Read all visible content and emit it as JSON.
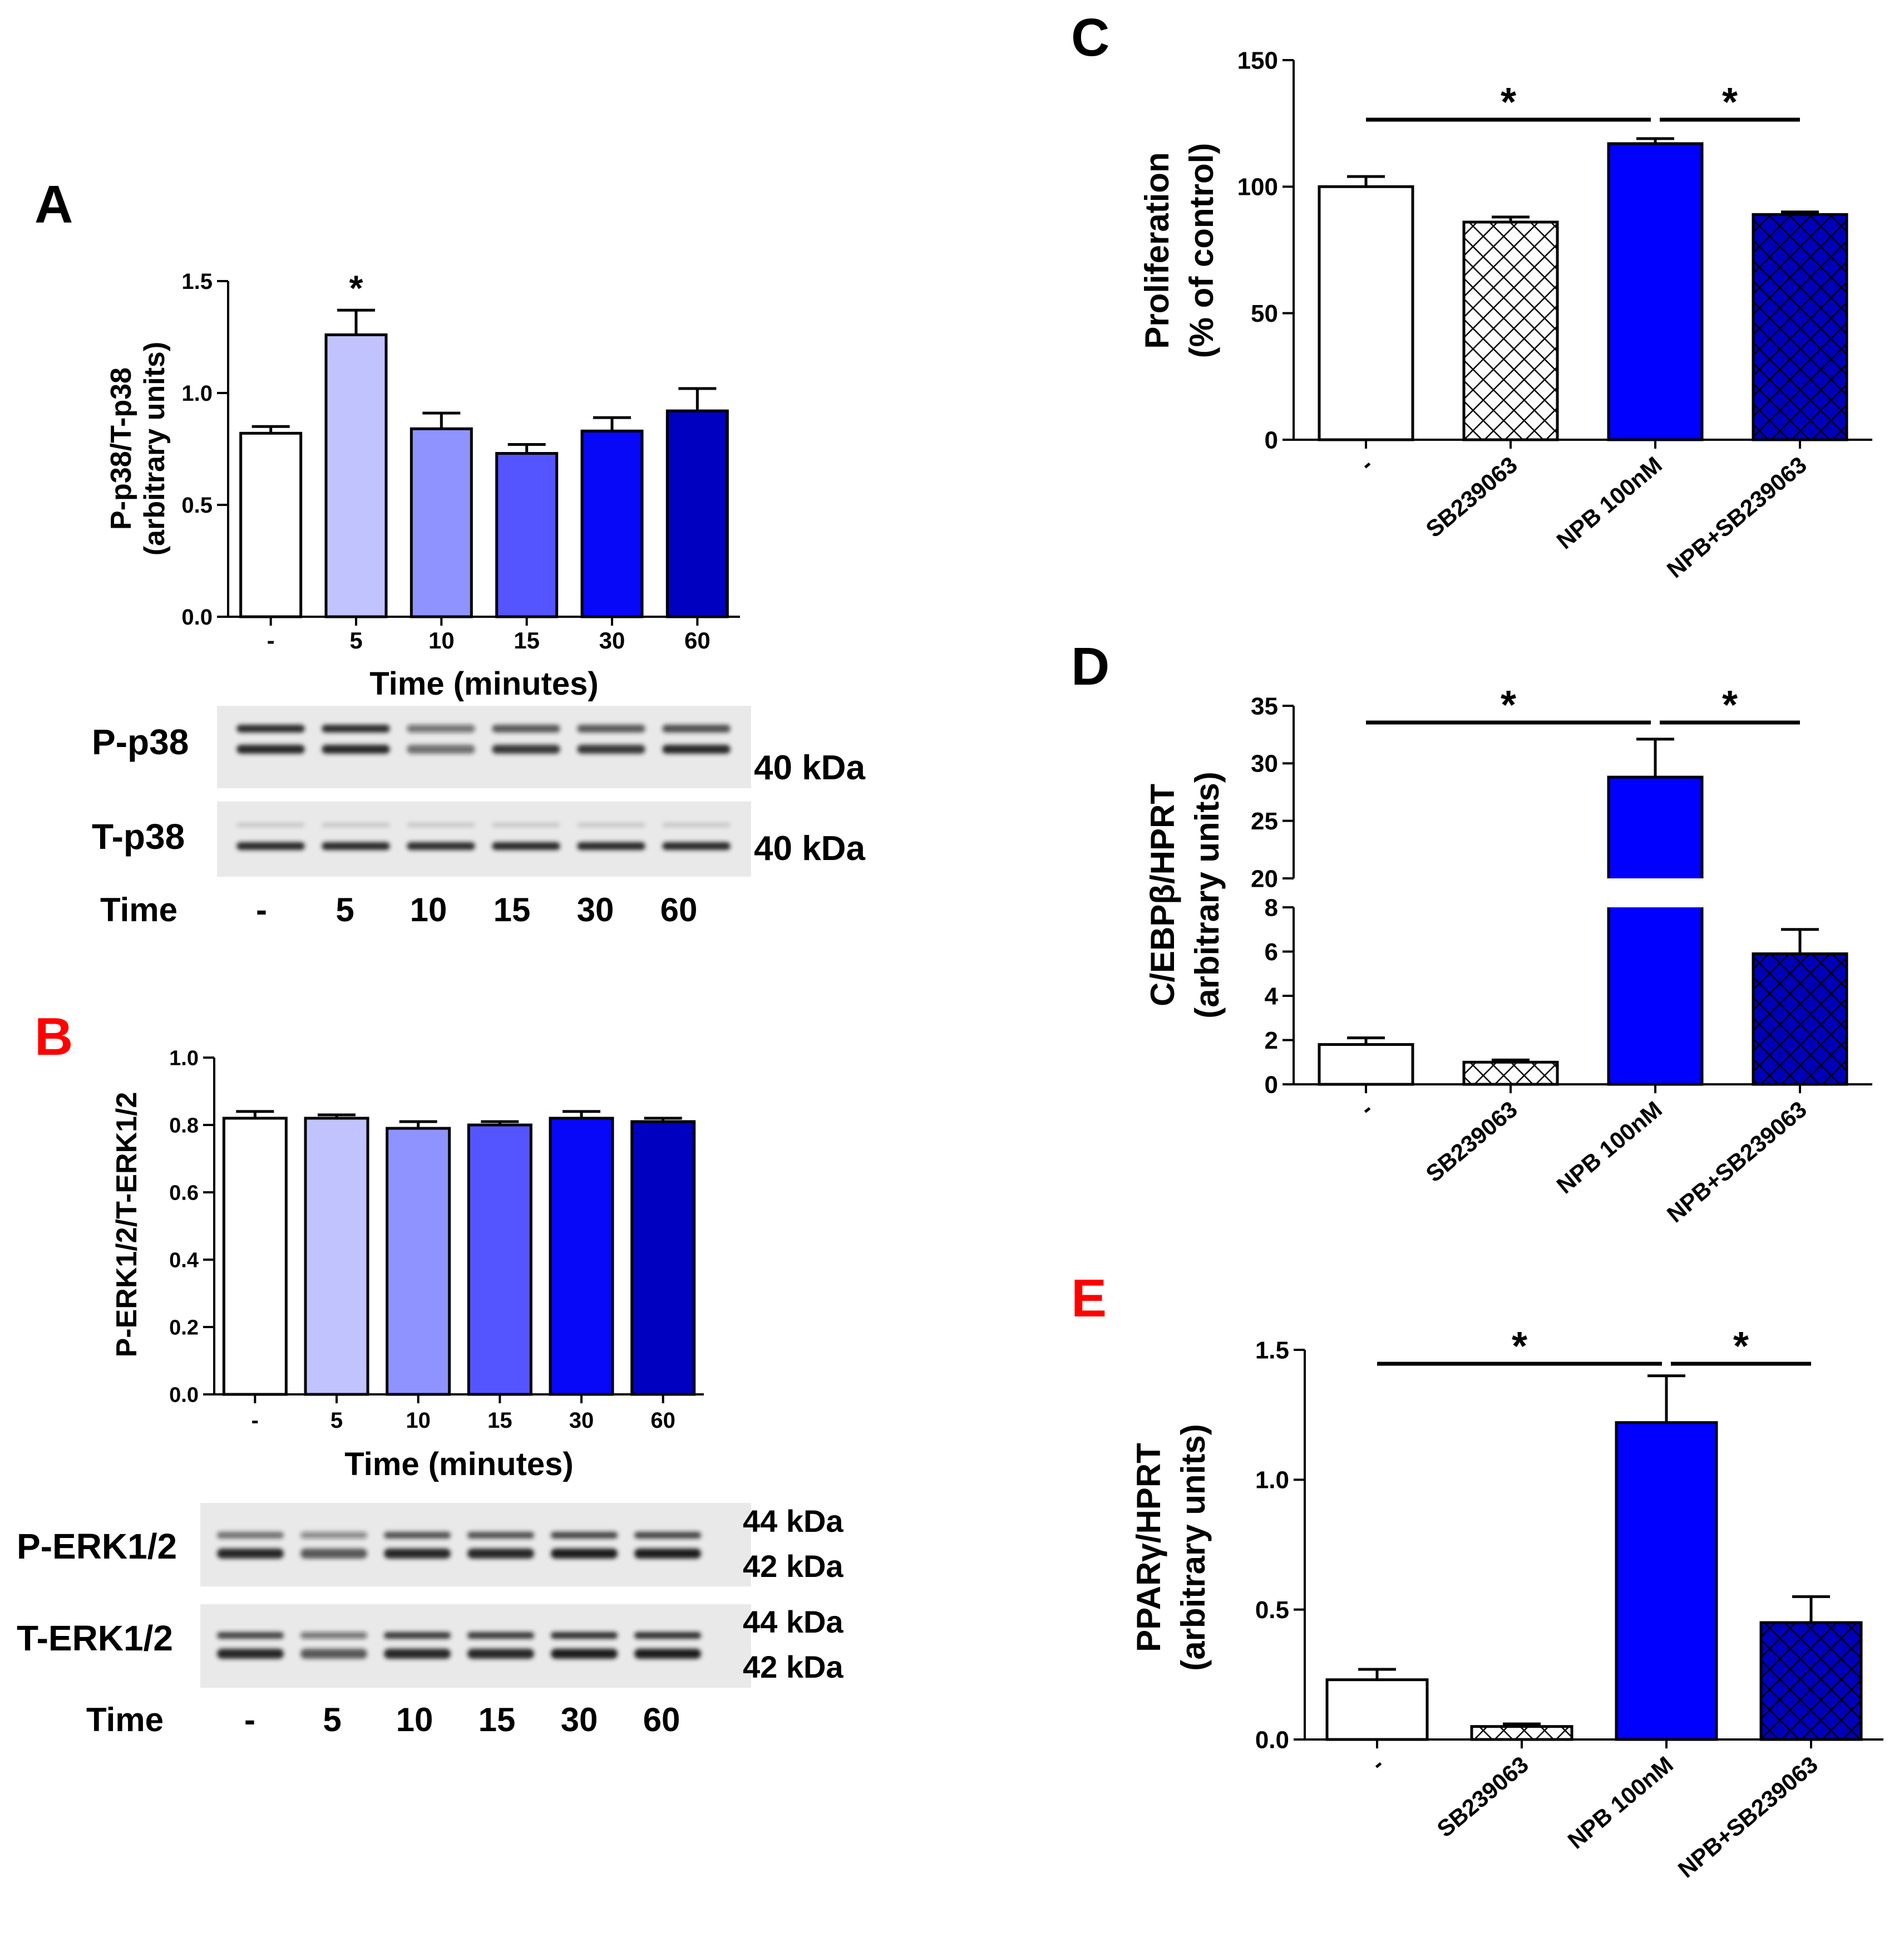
{
  "panel_letters": {
    "A": "A",
    "B": "B",
    "C": "C",
    "D": "D",
    "E": "E"
  },
  "colors": {
    "letter_black": "#000000",
    "letter_red": "#ff0000",
    "time_ramp": [
      "#ffffff",
      "#c0c3ff",
      "#8f93ff",
      "#5555ff",
      "#0808f8",
      "#0000c0"
    ],
    "treat": [
      "#ffffff",
      "#ffffff",
      "#0000ff",
      "#0000b8"
    ],
    "blot_bg": "#e9e9e9",
    "band": "#1a1a1a"
  },
  "blots": {
    "a": {
      "rows": [
        {
          "label": "P-p38",
          "sizes": [
            "40 kDa"
          ]
        },
        {
          "label": "T-p38",
          "sizes": [
            "40 kDa"
          ]
        }
      ],
      "time_label": "Time",
      "times": [
        "-",
        "5",
        "10",
        "15",
        "30",
        "60"
      ]
    },
    "b": {
      "rows": [
        {
          "label": "P-ERK1/2",
          "sizes": [
            "44 kDa",
            "42 kDa"
          ]
        },
        {
          "label": "T-ERK1/2",
          "sizes": [
            "44 kDa",
            "42 kDa"
          ]
        }
      ],
      "time_label": "Time",
      "times": [
        "-",
        "5",
        "10",
        "15",
        "30",
        "60"
      ]
    }
  },
  "chart_data": [
    {
      "panel": "A",
      "type": "bar",
      "categories": [
        "-",
        "5",
        "10",
        "15",
        "30",
        "60"
      ],
      "values": [
        0.82,
        1.26,
        0.84,
        0.73,
        0.83,
        0.92
      ],
      "errors": [
        0.03,
        0.11,
        0.07,
        0.04,
        0.06,
        0.1
      ],
      "significance": [
        "",
        "*",
        "",
        "",
        "",
        ""
      ],
      "xlabel": "Time (minutes)",
      "ylabel": [
        "P-p38/T-p38",
        "(arbitrary units)"
      ],
      "ylim": [
        0,
        1.5
      ],
      "yticks": [
        "0.0",
        "0.5",
        "1.0",
        "1.5"
      ],
      "pattern": "solid",
      "grid": false
    },
    {
      "panel": "B",
      "type": "bar",
      "categories": [
        "-",
        "5",
        "10",
        "15",
        "30",
        "60"
      ],
      "values": [
        0.82,
        0.82,
        0.79,
        0.8,
        0.82,
        0.81
      ],
      "errors": [
        0.02,
        0.01,
        0.02,
        0.01,
        0.02,
        0.01
      ],
      "xlabel": "Time (minutes)",
      "ylabel": [
        "P-ERK1/2/T-ERK1/2"
      ],
      "ylim": [
        0,
        1.0
      ],
      "yticks": [
        "0.0",
        "0.2",
        "0.4",
        "0.6",
        "0.8",
        "1.0"
      ],
      "pattern": "solid",
      "grid": false
    },
    {
      "panel": "C",
      "type": "bar",
      "categories": [
        "-",
        "SB239063",
        "NPB 100nM",
        "NPB+SB239063"
      ],
      "values": [
        100,
        86,
        117,
        89
      ],
      "errors": [
        4,
        2,
        2,
        1
      ],
      "ylabel": [
        "Proliferation",
        "(% of control)"
      ],
      "ylim": [
        0,
        150
      ],
      "yticks": [
        "0",
        "50",
        "100",
        "150"
      ],
      "patterns": [
        "none",
        "cross",
        "none",
        "cross"
      ],
      "significance": [
        {
          "from": 0,
          "to": 2,
          "label": "*"
        },
        {
          "from": 2,
          "to": 3,
          "label": "*"
        }
      ],
      "grid": false
    },
    {
      "panel": "D",
      "type": "bar",
      "categories": [
        "-",
        "SB239063",
        "NPB 100nM",
        "NPB+SB239063"
      ],
      "values": [
        1.8,
        1.0,
        28.8,
        5.9
      ],
      "errors": [
        0.3,
        0.1,
        3.3,
        1.1
      ],
      "ylabel": [
        "C/EBPβ/HPRT",
        "(arbitrary units)"
      ],
      "broken_axis": {
        "lower": [
          0,
          8
        ],
        "upper": [
          20,
          35
        ]
      },
      "yticks_lower": [
        "0",
        "2",
        "4",
        "6",
        "8"
      ],
      "yticks_upper": [
        "20",
        "25",
        "30",
        "35"
      ],
      "patterns": [
        "none",
        "cross",
        "none",
        "cross"
      ],
      "significance": [
        {
          "from": 0,
          "to": 2,
          "label": "*"
        },
        {
          "from": 2,
          "to": 3,
          "label": "*"
        }
      ],
      "grid": false
    },
    {
      "panel": "E",
      "type": "bar",
      "categories": [
        "-",
        "SB239063",
        "NPB 100nM",
        "NPB+SB239063"
      ],
      "values": [
        0.23,
        0.05,
        1.22,
        0.45
      ],
      "errors": [
        0.04,
        0.01,
        0.18,
        0.1
      ],
      "ylabel": [
        "PPARγ/HPRT",
        "(arbitrary units)"
      ],
      "ylim": [
        0,
        1.5
      ],
      "yticks": [
        "0.0",
        "0.5",
        "1.0",
        "1.5"
      ],
      "patterns": [
        "none",
        "cross",
        "none",
        "cross"
      ],
      "significance": [
        {
          "from": 0,
          "to": 2,
          "label": "*"
        },
        {
          "from": 2,
          "to": 3,
          "label": "*"
        }
      ],
      "grid": false
    }
  ]
}
